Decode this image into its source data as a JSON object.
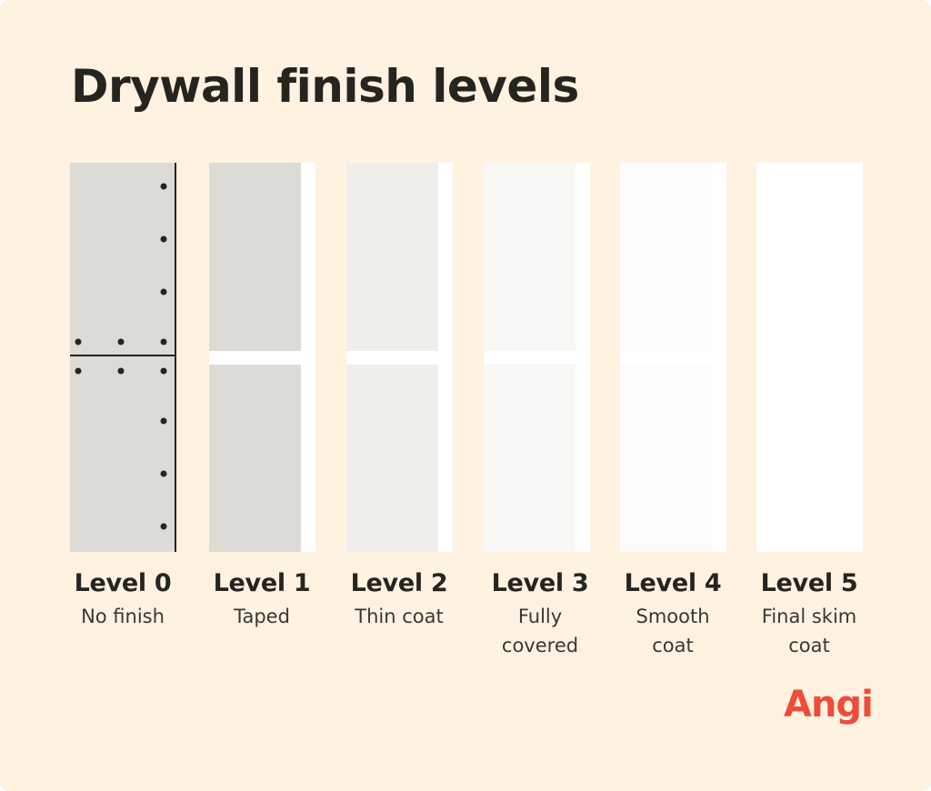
{
  "title": "Drywall finish levels",
  "colors": {
    "background": "#fff2e1",
    "level0": "#dcdbd6",
    "level1": "#dcdbd6",
    "level2": "#efeeeb",
    "level3": "#f7f7f5",
    "level4": "#fbfbfa",
    "level5": "#ffffff",
    "tape": "#ffffff",
    "logo": "#ef4c3a"
  },
  "levels": [
    {
      "name": "Level 0",
      "description": "No finish"
    },
    {
      "name": "Level 1",
      "description": "Taped"
    },
    {
      "name": "Level 2",
      "description": "Thin coat"
    },
    {
      "name": "Level 3",
      "description": "Fully covered"
    },
    {
      "name": "Level 4",
      "description": "Smooth coat"
    },
    {
      "name": "Level 5",
      "description": "Final skim coat"
    }
  ],
  "logo": "Angi"
}
